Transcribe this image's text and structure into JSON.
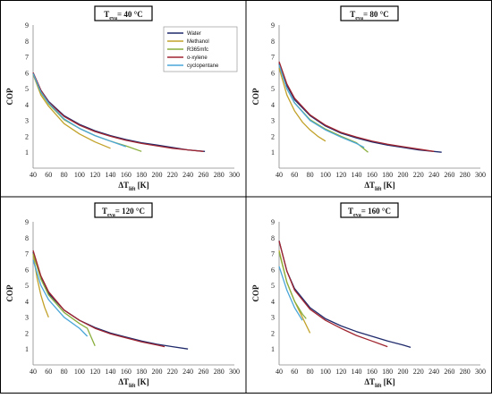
{
  "chart_data": [
    {
      "type": "line",
      "title_main": "T",
      "title_sub": "eva",
      "title_rest": "= 40 °C",
      "xlabel_main": "ΔT",
      "xlabel_sub": "lift",
      "xlabel_rest": " [K]",
      "ylabel": "COP",
      "xlim": [
        40,
        300
      ],
      "ylim": [
        0,
        9
      ],
      "x_ticks": [
        40,
        60,
        80,
        100,
        120,
        140,
        160,
        180,
        200,
        220,
        240,
        260,
        280,
        300
      ],
      "y_ticks": [
        1,
        2,
        3,
        4,
        5,
        6,
        7,
        8,
        9
      ],
      "grid": false,
      "legend": "top-right",
      "series": [
        {
          "name": "Water",
          "color": "#1f2a6b",
          "x": [
            40,
            50,
            60,
            80,
            100,
            120,
            140,
            160,
            180,
            200,
            220,
            240,
            262
          ],
          "y": [
            6.0,
            4.9,
            4.2,
            3.3,
            2.75,
            2.35,
            2.05,
            1.8,
            1.6,
            1.45,
            1.3,
            1.15,
            1.05
          ]
        },
        {
          "name": "Methanol",
          "color": "#c2a22a",
          "x": [
            40,
            50,
            60,
            80,
            100,
            120,
            140
          ],
          "y": [
            5.9,
            4.6,
            3.9,
            2.8,
            2.15,
            1.65,
            1.25
          ]
        },
        {
          "name": "R365mfc",
          "color": "#8aae3c",
          "x": [
            40,
            50,
            60,
            80,
            100,
            120,
            140,
            160,
            180
          ],
          "y": [
            5.95,
            4.75,
            4.05,
            3.05,
            2.5,
            2.05,
            1.7,
            1.4,
            1.05
          ]
        },
        {
          "name": "o-xylene",
          "color": "#a02530",
          "x": [
            40,
            50,
            60,
            80,
            100,
            120,
            140,
            160,
            180,
            200,
            220,
            240,
            260
          ],
          "y": [
            6.0,
            4.9,
            4.15,
            3.25,
            2.7,
            2.3,
            2.0,
            1.75,
            1.55,
            1.4,
            1.25,
            1.15,
            1.05
          ]
        },
        {
          "name": "cyclopentane",
          "color": "#4aa6d8",
          "x": [
            40,
            50,
            60,
            80,
            100,
            120,
            140,
            160
          ],
          "y": [
            5.95,
            4.8,
            4.1,
            3.1,
            2.5,
            2.05,
            1.7,
            1.35
          ]
        }
      ]
    },
    {
      "type": "line",
      "title_main": "T",
      "title_sub": "eva",
      "title_rest": "= 80 °C",
      "xlabel_main": "ΔT",
      "xlabel_sub": "lift",
      "xlabel_rest": " [K]",
      "ylabel": "COP",
      "xlim": [
        40,
        300
      ],
      "ylim": [
        0,
        9
      ],
      "x_ticks": [
        40,
        60,
        80,
        100,
        120,
        140,
        160,
        180,
        200,
        220,
        240,
        260,
        280,
        300
      ],
      "y_ticks": [
        1,
        2,
        3,
        4,
        5,
        6,
        7,
        8,
        9
      ],
      "grid": false,
      "series": [
        {
          "name": "Water",
          "color": "#1f2a6b",
          "x": [
            40,
            50,
            60,
            80,
            100,
            120,
            140,
            160,
            180,
            200,
            220,
            250
          ],
          "y": [
            6.6,
            5.2,
            4.3,
            3.3,
            2.65,
            2.2,
            1.9,
            1.65,
            1.45,
            1.3,
            1.15,
            1.0
          ]
        },
        {
          "name": "Methanol",
          "color": "#c2a22a",
          "x": [
            40,
            50,
            60,
            70,
            80,
            90,
            100
          ],
          "y": [
            6.3,
            4.6,
            3.6,
            2.9,
            2.4,
            2.0,
            1.7
          ]
        },
        {
          "name": "R365mfc",
          "color": "#8aae3c",
          "x": [
            40,
            50,
            60,
            80,
            100,
            120,
            140,
            155
          ],
          "y": [
            6.5,
            5.0,
            4.1,
            3.05,
            2.45,
            2.0,
            1.6,
            1.0
          ]
        },
        {
          "name": "o-xylene",
          "color": "#a02530",
          "x": [
            40,
            50,
            60,
            80,
            100,
            120,
            140,
            160,
            180,
            200,
            220,
            240
          ],
          "y": [
            6.7,
            5.3,
            4.4,
            3.35,
            2.7,
            2.25,
            1.95,
            1.7,
            1.5,
            1.35,
            1.2,
            1.05
          ]
        },
        {
          "name": "cyclopentane",
          "color": "#4aa6d8",
          "x": [
            40,
            50,
            60,
            80,
            100,
            120,
            140,
            150
          ],
          "y": [
            6.5,
            5.0,
            4.1,
            3.0,
            2.4,
            1.95,
            1.55,
            1.3
          ]
        }
      ]
    },
    {
      "type": "line",
      "title_main": "T",
      "title_sub": "eva",
      "title_rest": "= 120 °C",
      "xlabel_main": "ΔT",
      "xlabel_sub": "lift",
      "xlabel_rest": " [K]",
      "ylabel": "COP",
      "xlim": [
        40,
        300
      ],
      "ylim": [
        0,
        9
      ],
      "x_ticks": [
        40,
        60,
        80,
        100,
        120,
        140,
        160,
        180,
        200,
        220,
        240,
        260,
        280,
        300
      ],
      "y_ticks": [
        1,
        2,
        3,
        4,
        5,
        6,
        7,
        8,
        9
      ],
      "grid": false,
      "series": [
        {
          "name": "Water",
          "color": "#1f2a6b",
          "x": [
            40,
            50,
            60,
            80,
            100,
            120,
            140,
            160,
            180,
            200,
            220,
            240
          ],
          "y": [
            7.1,
            5.5,
            4.5,
            3.45,
            2.8,
            2.35,
            2.0,
            1.75,
            1.5,
            1.3,
            1.15,
            1.0
          ]
        },
        {
          "name": "Methanol",
          "color": "#c2a22a",
          "x": [
            40,
            45,
            50,
            55,
            60
          ],
          "y": [
            7.0,
            5.5,
            4.4,
            3.6,
            3.0
          ]
        },
        {
          "name": "R365mfc",
          "color": "#8aae3c",
          "x": [
            40,
            50,
            60,
            80,
            100,
            110,
            120
          ],
          "y": [
            7.0,
            5.4,
            4.4,
            3.3,
            2.6,
            2.3,
            1.2
          ]
        },
        {
          "name": "o-xylene",
          "color": "#a02530",
          "x": [
            40,
            50,
            60,
            80,
            100,
            120,
            140,
            160,
            180,
            200,
            210
          ],
          "y": [
            7.2,
            5.6,
            4.6,
            3.45,
            2.8,
            2.3,
            1.95,
            1.7,
            1.45,
            1.25,
            1.15
          ]
        },
        {
          "name": "cyclopentane",
          "color": "#4aa6d8",
          "x": [
            40,
            50,
            60,
            80,
            100,
            110
          ],
          "y": [
            6.6,
            5.0,
            4.1,
            3.0,
            2.3,
            1.8
          ]
        }
      ]
    },
    {
      "type": "line",
      "title_main": "T",
      "title_sub": "eva",
      "title_rest": "= 160 °C",
      "xlabel_main": "ΔT",
      "xlabel_sub": "lift",
      "xlabel_rest": " [K]",
      "ylabel": "COP",
      "xlim": [
        40,
        300
      ],
      "ylim": [
        0,
        9
      ],
      "x_ticks": [
        40,
        60,
        80,
        100,
        120,
        140,
        160,
        180,
        200,
        220,
        240,
        260,
        280,
        300
      ],
      "y_ticks": [
        1,
        2,
        3,
        4,
        5,
        6,
        7,
        8,
        9
      ],
      "grid": false,
      "series": [
        {
          "name": "Water",
          "color": "#1f2a6b",
          "x": [
            40,
            50,
            60,
            80,
            100,
            120,
            140,
            160,
            180,
            200,
            210
          ],
          "y": [
            7.8,
            5.9,
            4.8,
            3.6,
            2.9,
            2.45,
            2.1,
            1.8,
            1.5,
            1.25,
            1.1
          ]
        },
        {
          "name": "Methanol",
          "color": "#c2a22a",
          "x": [
            40,
            50,
            60,
            70,
            80
          ],
          "y": [
            7.2,
            5.2,
            4.0,
            3.0,
            2.0
          ]
        },
        {
          "name": "R365mfc",
          "color": "#8aae3c",
          "x": [
            40,
            50,
            60,
            70,
            75
          ],
          "y": [
            7.1,
            5.2,
            4.0,
            3.2,
            2.9
          ]
        },
        {
          "name": "o-xylene",
          "color": "#a02530",
          "x": [
            40,
            50,
            60,
            80,
            100,
            120,
            140,
            160,
            180
          ],
          "y": [
            7.8,
            5.9,
            4.7,
            3.5,
            2.8,
            2.3,
            1.85,
            1.5,
            1.15
          ]
        },
        {
          "name": "cyclopentane",
          "color": "#4aa6d8",
          "x": [
            40,
            50,
            60,
            70
          ],
          "y": [
            6.2,
            4.7,
            3.6,
            2.8
          ]
        }
      ]
    }
  ]
}
